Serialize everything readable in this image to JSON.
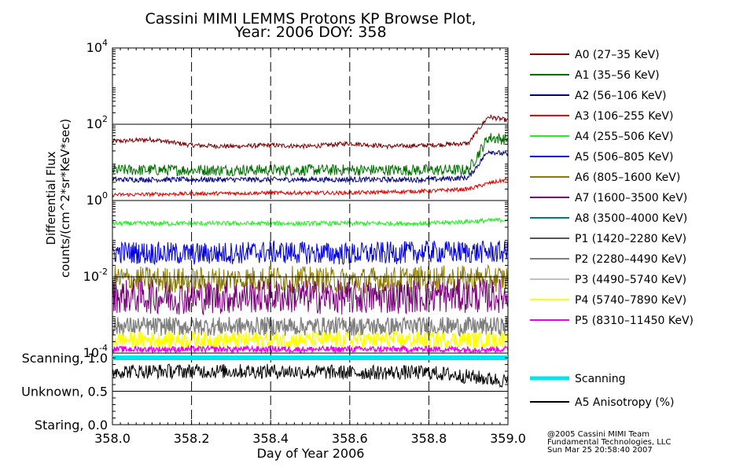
{
  "chart_data": {
    "type": "line",
    "title": "Cassini MIMI LEMMS Protons KP Browse Plot,",
    "subtitle": "Year: 2006 DOY: 358",
    "xlabel": "Day of Year 2006",
    "ylabel_line1": "Differential Flux",
    "ylabel_line2": "counts/(cm^2*sr*KeV*sec)",
    "xlim": [
      358.0,
      359.0
    ],
    "xticks": [
      "358.0",
      "358.2",
      "358.4",
      "358.6",
      "358.8",
      "359.0"
    ],
    "ylim_log10": [
      -4,
      4
    ],
    "yticks_top": [
      {
        "base": "10",
        "exp": "4",
        "log": 4
      },
      {
        "base": "10",
        "exp": "2",
        "log": 2
      },
      {
        "base": "10",
        "exp": "0",
        "log": 0
      },
      {
        "base": "10",
        "exp": "-2",
        "log": -2
      },
      {
        "base": "10",
        "exp": "-4",
        "log": -4
      }
    ],
    "yticks_bottom": [
      {
        "label": "Scanning, 1.0",
        "value": 1.0
      },
      {
        "label": "Unknown, 0.5",
        "value": 0.5
      },
      {
        "label": "Staring, 0.0",
        "value": 0.0
      }
    ],
    "series": [
      {
        "name": "A0 (27–35 KeV)",
        "color": "#7b0000",
        "x": [
          358.0,
          358.1,
          358.2,
          358.3,
          358.4,
          358.5,
          358.6,
          358.7,
          358.8,
          358.9,
          358.95,
          359.0
        ],
        "log_y": [
          1.55,
          1.6,
          1.45,
          1.42,
          1.45,
          1.42,
          1.5,
          1.42,
          1.45,
          1.5,
          2.2,
          2.1
        ]
      },
      {
        "name": "A1 (35–56 KeV)",
        "color": "#007000",
        "x": [
          358.0,
          358.2,
          358.4,
          358.6,
          358.8,
          358.9,
          358.95,
          359.0
        ],
        "log_y": [
          0.8,
          0.8,
          0.8,
          0.8,
          0.8,
          0.8,
          1.65,
          1.6
        ]
      },
      {
        "name": "A2 (56–106 KeV)",
        "color": "#000080",
        "x": [
          358.0,
          358.2,
          358.4,
          358.6,
          358.8,
          358.9,
          358.95,
          359.0
        ],
        "log_y": [
          0.55,
          0.55,
          0.55,
          0.55,
          0.55,
          0.6,
          1.3,
          1.2
        ]
      },
      {
        "name": "A3 (106–255 KeV)",
        "color": "#e00000",
        "x": [
          358.0,
          358.2,
          358.4,
          358.6,
          358.8,
          358.9,
          358.95,
          359.0
        ],
        "log_y": [
          0.15,
          0.18,
          0.2,
          0.2,
          0.25,
          0.3,
          0.45,
          0.55
        ]
      },
      {
        "name": "A4 (255–506 KeV)",
        "color": "#22ee22",
        "x": [
          358.0,
          358.2,
          358.4,
          358.6,
          358.8,
          358.9,
          359.0
        ],
        "log_y": [
          -0.6,
          -0.6,
          -0.6,
          -0.6,
          -0.6,
          -0.55,
          -0.5
        ]
      },
      {
        "name": "A5 (506–805 KeV)",
        "color": "#0000e0",
        "x": [
          358.0,
          358.2,
          358.4,
          358.6,
          358.8,
          359.0
        ],
        "log_y": [
          -1.35,
          -1.4,
          -1.35,
          -1.4,
          -1.35,
          -1.35
        ]
      },
      {
        "name": "A6 (805–1600 KeV)",
        "color": "#8a7a00",
        "x": [
          358.0,
          358.2,
          358.4,
          358.6,
          358.8,
          359.0
        ],
        "log_y": [
          -2.05,
          -2.1,
          -2.05,
          -2.1,
          -2.05,
          -2.05
        ]
      },
      {
        "name": "A7 (1600–3500 KeV)",
        "color": "#7a007a",
        "x": [
          358.0,
          358.2,
          358.4,
          358.6,
          358.8,
          359.0
        ],
        "log_y": [
          -2.5,
          -2.55,
          -2.5,
          -2.55,
          -2.5,
          -2.5
        ]
      },
      {
        "name": "A8 (3500–4000 KeV)",
        "color": "#007a7a",
        "x": [],
        "log_y": []
      },
      {
        "name": "P1 (1420–2280 KeV)",
        "color": "#555555",
        "x": [],
        "log_y": []
      },
      {
        "name": "P2 (2280–4490 KeV)",
        "color": "#808080",
        "x": [
          358.0,
          358.2,
          358.4,
          358.6,
          358.8,
          359.0
        ],
        "log_y": [
          -3.3,
          -3.3,
          -3.3,
          -3.3,
          -3.3,
          -3.3
        ]
      },
      {
        "name": "P3 (4490–5740 KeV)",
        "color": "#c0c0c0",
        "x": [],
        "log_y": []
      },
      {
        "name": "P4 (5740–7890 KeV)",
        "color": "#ffff00",
        "x": [
          358.0,
          358.2,
          358.4,
          358.6,
          358.8,
          359.0
        ],
        "log_y": [
          -3.65,
          -3.65,
          -3.65,
          -3.65,
          -3.65,
          -3.65
        ]
      },
      {
        "name": "P5 (8310–11450 KeV)",
        "color": "#ee00ee",
        "x": [
          358.0,
          358.2,
          358.4,
          358.6,
          358.8,
          359.0
        ],
        "log_y": [
          -3.9,
          -3.9,
          -3.9,
          -3.9,
          -3.9,
          -3.9
        ]
      }
    ],
    "lower_series": [
      {
        "name": "Scanning",
        "color": "#00e5ee",
        "x": [
          358.0,
          359.0
        ],
        "y": [
          1.0,
          1.0
        ]
      },
      {
        "name": "A5 Anisotropy (%)",
        "color": "#000000",
        "x": [
          358.0,
          358.2,
          358.4,
          358.6,
          358.8,
          358.9,
          359.0
        ],
        "y": [
          0.8,
          0.8,
          0.8,
          0.78,
          0.78,
          0.72,
          0.65
        ]
      }
    ],
    "grid": true,
    "legend_position": "right"
  },
  "footer": {
    "line1": "@2005 Cassini MIMI Team",
    "line2": "Fundamental Technologies, LLC",
    "line3": "Sun Mar 25 20:58:40 2007"
  }
}
